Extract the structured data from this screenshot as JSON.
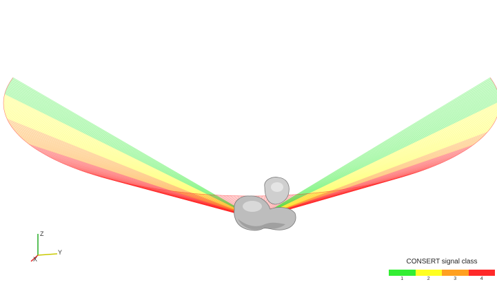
{
  "legend": {
    "title": "CONSERT signal class",
    "classes": [
      {
        "label": "1",
        "color": "#33ee33"
      },
      {
        "label": "2",
        "color": "#ffff22"
      },
      {
        "label": "3",
        "color": "#ffa020"
      },
      {
        "label": "4",
        "color": "#ff2a2a"
      }
    ]
  },
  "axes": {
    "z_label": "Z",
    "y_label": "Y",
    "x_label": "X",
    "z_color": "#22aa22",
    "y_color": "#c8c800",
    "x_color": "#dd2222"
  },
  "rays": {
    "sectors": [
      {
        "class": 1,
        "from": 0.0,
        "to": 0.05
      },
      {
        "class": 2,
        "from": 0.05,
        "to": 0.12
      },
      {
        "class": 3,
        "from": 0.12,
        "to": 0.2
      },
      {
        "class": 4,
        "from": 0.2,
        "to": 0.8
      },
      {
        "class": 3,
        "from": 0.8,
        "to": 0.84
      },
      {
        "class": 2,
        "from": 0.84,
        "to": 0.93
      },
      {
        "class": 1,
        "from": 0.93,
        "to": 1.0
      }
    ]
  }
}
